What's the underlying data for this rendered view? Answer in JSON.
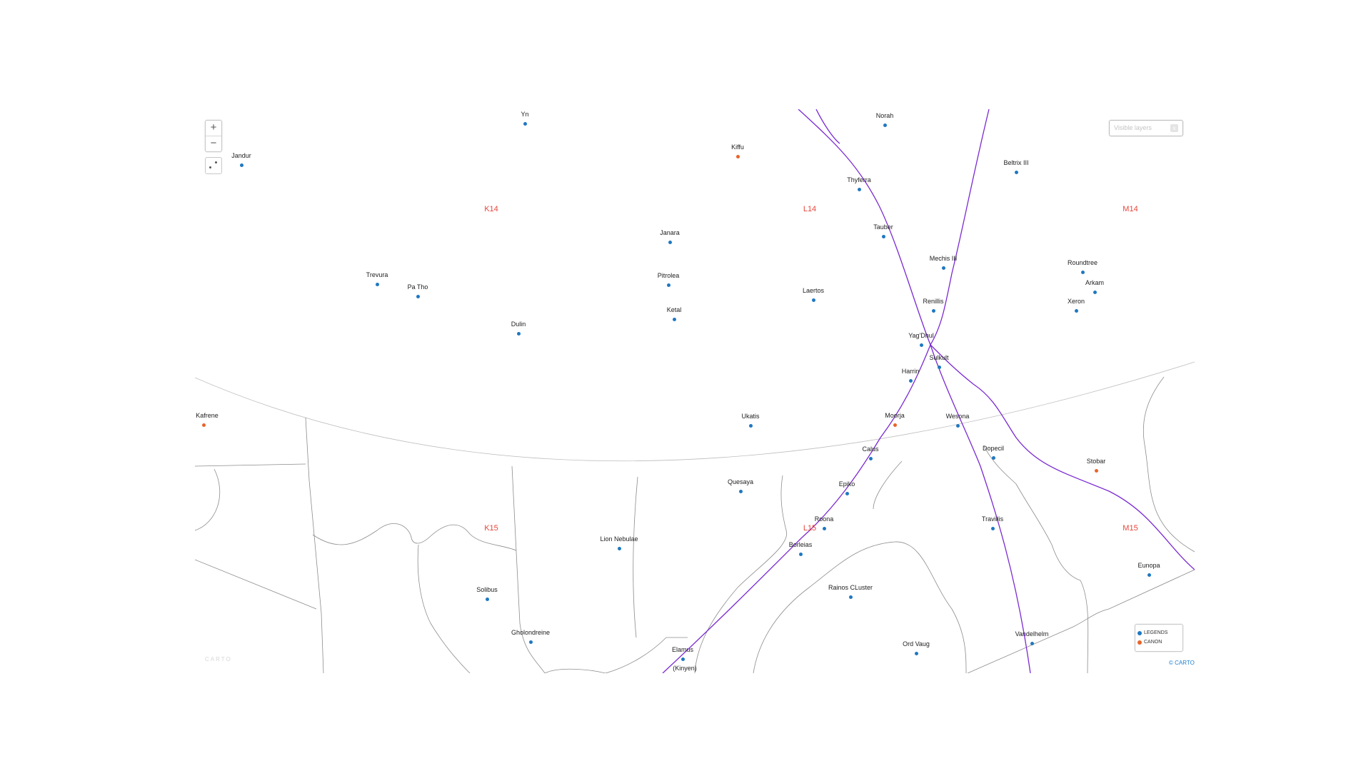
{
  "colors": {
    "legends": "#1f78c1",
    "canon": "#e8642b",
    "route": "#7a2ad1",
    "border": "#8c8c8c",
    "grid_label": "#e8463b"
  },
  "controls": {
    "zoom_in": "+",
    "zoom_out": "−",
    "fit_icon": "fit-bounds-icon",
    "layers_placeholder": "Visible layers",
    "layers_button": "x"
  },
  "grid_labels": [
    "K14",
    "L14",
    "M14",
    "K15",
    "L15",
    "M15"
  ],
  "planets": [
    {
      "name": "Yn",
      "type": "legends"
    },
    {
      "name": "Norah",
      "type": "legends"
    },
    {
      "name": "Kiffu",
      "type": "canon"
    },
    {
      "name": "Jandur",
      "type": "legends"
    },
    {
      "name": "Thyferra",
      "type": "legends"
    },
    {
      "name": "Beltrix III",
      "type": "legends"
    },
    {
      "name": "Tauber",
      "type": "legends"
    },
    {
      "name": "Janara",
      "type": "legends"
    },
    {
      "name": "Mechis III",
      "type": "legends"
    },
    {
      "name": "Roundtree",
      "type": "legends"
    },
    {
      "name": "Trevura",
      "type": "legends"
    },
    {
      "name": "Pitrolea",
      "type": "legends"
    },
    {
      "name": "Pa Tho",
      "type": "legends"
    },
    {
      "name": "Arkam",
      "type": "legends"
    },
    {
      "name": "Laertos",
      "type": "legends"
    },
    {
      "name": "Renillis",
      "type": "legends"
    },
    {
      "name": "Xeron",
      "type": "legends"
    },
    {
      "name": "Ketal",
      "type": "legends"
    },
    {
      "name": "Dulin",
      "type": "legends"
    },
    {
      "name": "Yag'Dhul",
      "type": "legends"
    },
    {
      "name": "Sulkult",
      "type": "legends"
    },
    {
      "name": "Harrin",
      "type": "legends"
    },
    {
      "name": "of Kafrene",
      "type": "canon"
    },
    {
      "name": "Ukatis",
      "type": "legends"
    },
    {
      "name": "Moorja",
      "type": "canon"
    },
    {
      "name": "Wesona",
      "type": "legends"
    },
    {
      "name": "Calus",
      "type": "legends"
    },
    {
      "name": "Dopecil",
      "type": "legends"
    },
    {
      "name": "Stobar",
      "type": "canon"
    },
    {
      "name": "Quesaya",
      "type": "legends"
    },
    {
      "name": "Epiko",
      "type": "legends"
    },
    {
      "name": "Roona",
      "type": "legends"
    },
    {
      "name": "Travillis",
      "type": "legends"
    },
    {
      "name": "Lion Nebulae",
      "type": "legends"
    },
    {
      "name": "Borleias",
      "type": "legends"
    },
    {
      "name": "Eunopa",
      "type": "legends"
    },
    {
      "name": "Solibus",
      "type": "legends"
    },
    {
      "name": "Rainos CLuster",
      "type": "legends"
    },
    {
      "name": "Gholondreine",
      "type": "legends"
    },
    {
      "name": "Vandelhelm",
      "type": "legends"
    },
    {
      "name": "Ord Vaug",
      "type": "legends"
    },
    {
      "name": "Elamus",
      "type": "legends"
    },
    {
      "name": "(Kinyen)",
      "type": "legends"
    }
  ],
  "legend": [
    {
      "label": "LEGENDS",
      "type": "legends"
    },
    {
      "label": "CANON",
      "type": "canon"
    }
  ],
  "attribution": "© CARTO",
  "logo": "CARTO"
}
